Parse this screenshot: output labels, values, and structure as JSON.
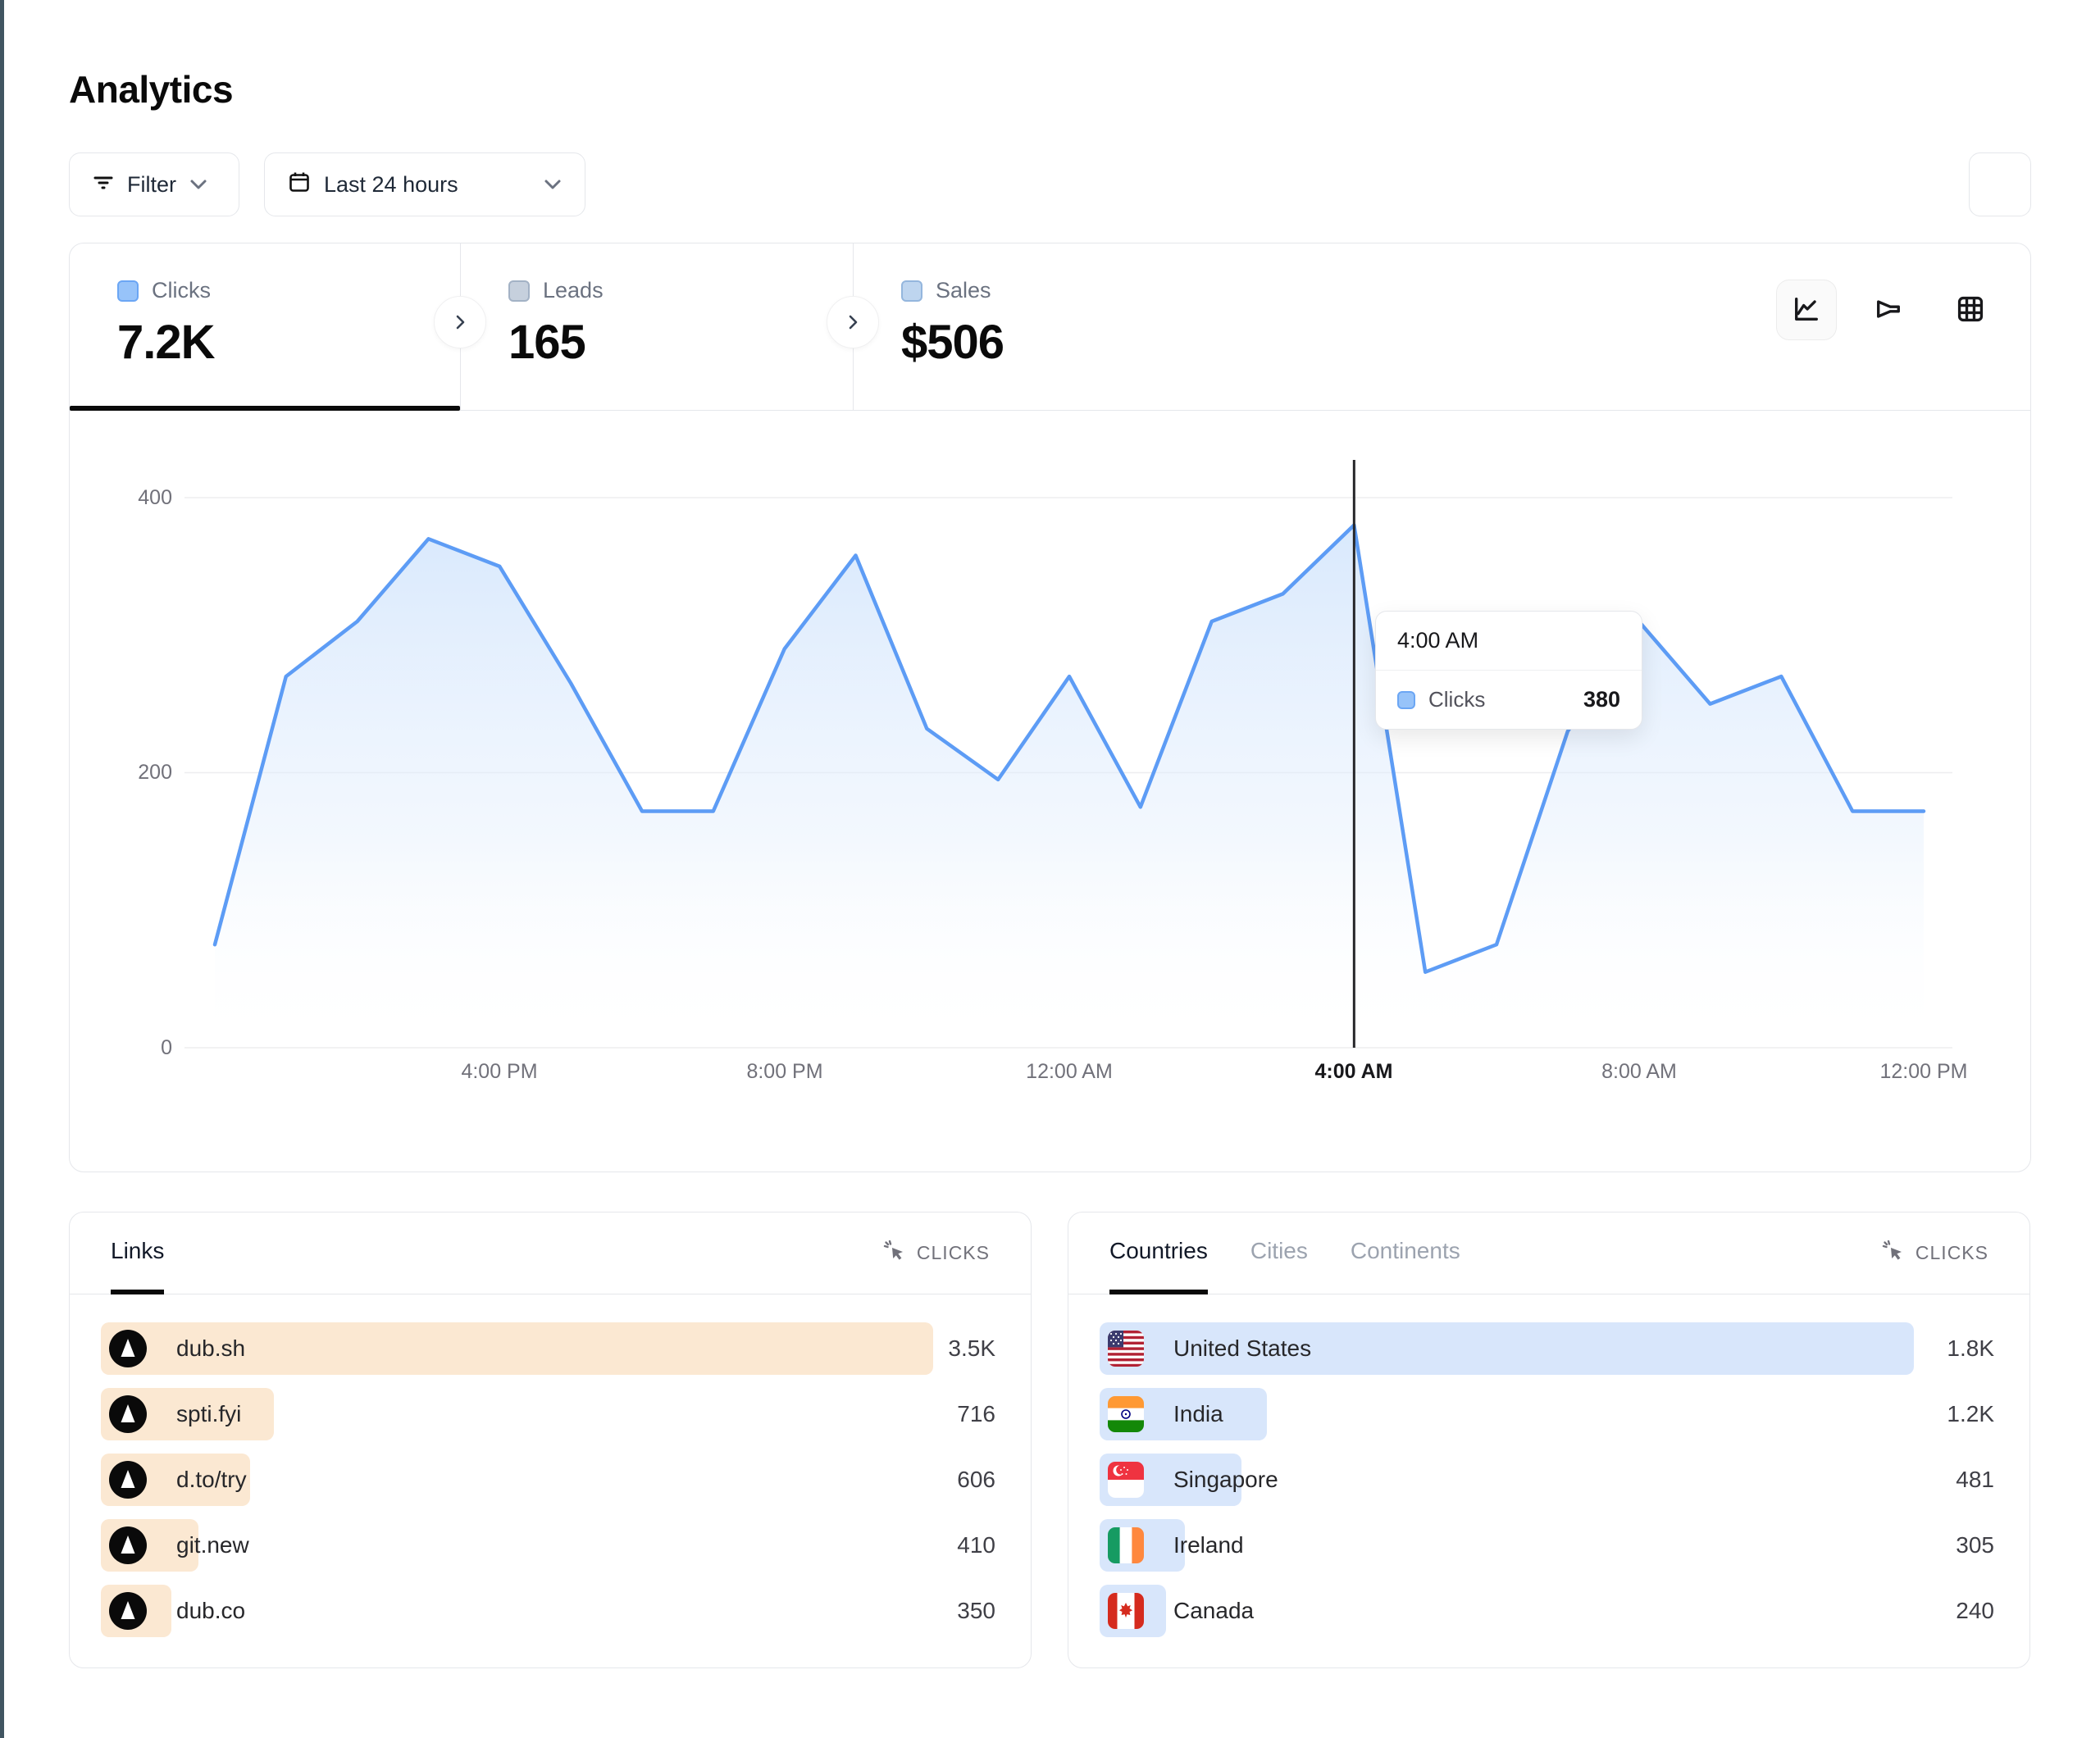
{
  "page": {
    "title": "Analytics"
  },
  "toolbar": {
    "filter_label": "Filter",
    "date_range_label": "Last 24 hours"
  },
  "stats": {
    "tabs": [
      {
        "label": "Clicks",
        "value": "7.2K",
        "active": true
      },
      {
        "label": "Leads",
        "value": "165",
        "active": false
      },
      {
        "label": "Sales",
        "value": "$506",
        "active": false
      }
    ],
    "view_icons": [
      "line-chart",
      "funnel",
      "table"
    ]
  },
  "chart_data": {
    "type": "area",
    "series_name": "Clicks",
    "x": [
      "12:00 PM",
      "1:00 PM",
      "2:00 PM",
      "3:00 PM",
      "4:00 PM",
      "5:00 PM",
      "6:00 PM",
      "7:00 PM",
      "8:00 PM",
      "9:00 PM",
      "10:00 PM",
      "11:00 PM",
      "12:00 AM",
      "1:00 AM",
      "2:00 AM",
      "3:00 AM",
      "4:00 AM",
      "5:00 AM",
      "6:00 AM",
      "7:00 AM",
      "8:00 AM",
      "9:00 AM",
      "10:00 AM",
      "11:00 AM",
      "12:00 PM"
    ],
    "values": [
      75,
      270,
      310,
      370,
      350,
      265,
      172,
      172,
      290,
      358,
      232,
      195,
      270,
      175,
      310,
      330,
      380,
      55,
      75,
      230,
      310,
      250,
      270,
      172,
      172
    ],
    "x_tick_labels": [
      "4:00 PM",
      "8:00 PM",
      "12:00 AM",
      "4:00 AM",
      "8:00 AM",
      "12:00 PM"
    ],
    "x_tick_indices": [
      4,
      8,
      12,
      16,
      20,
      24
    ],
    "yticks": [
      0,
      200,
      400
    ],
    "ylim": [
      0,
      540
    ],
    "grid": "horizontal",
    "legend": "none",
    "hover": {
      "index": 16,
      "time": "4:00 AM",
      "series": "Clicks",
      "value": "380"
    }
  },
  "links_panel": {
    "tab_label": "Links",
    "metric_label": "CLICKS",
    "rows": [
      {
        "label": "dub.sh",
        "value": "3.5K",
        "bar_pct": 93.0
      },
      {
        "label": "spti.fyi",
        "value": "716",
        "bar_pct": 19.3
      },
      {
        "label": "d.to/try",
        "value": "606",
        "bar_pct": 16.7
      },
      {
        "label": "git.new",
        "value": "410",
        "bar_pct": 10.9
      },
      {
        "label": "dub.co",
        "value": "350",
        "bar_pct": 7.9
      }
    ]
  },
  "countries_panel": {
    "tabs": [
      {
        "label": "Countries",
        "active": true
      },
      {
        "label": "Cities",
        "active": false
      },
      {
        "label": "Continents",
        "active": false
      }
    ],
    "metric_label": "CLICKS",
    "rows": [
      {
        "label": "United States",
        "flag": "us",
        "value": "1.8K",
        "bar_pct": 91.0
      },
      {
        "label": "India",
        "flag": "in",
        "value": "1.2K",
        "bar_pct": 18.7
      },
      {
        "label": "Singapore",
        "flag": "sg",
        "value": "481",
        "bar_pct": 15.9
      },
      {
        "label": "Ireland",
        "flag": "ie",
        "value": "305",
        "bar_pct": 9.5
      },
      {
        "label": "Canada",
        "flag": "ca",
        "value": "240",
        "bar_pct": 7.4
      }
    ]
  },
  "colors": {
    "accent_blue": "#5d9cf5",
    "area_fill_top": "#cfe3fc",
    "links_bar": "#fbe8d2",
    "countries_bar": "#d8e6fb",
    "grid_line": "#ededef",
    "crosshair": "#27272a",
    "edge_strip": "#415561"
  }
}
